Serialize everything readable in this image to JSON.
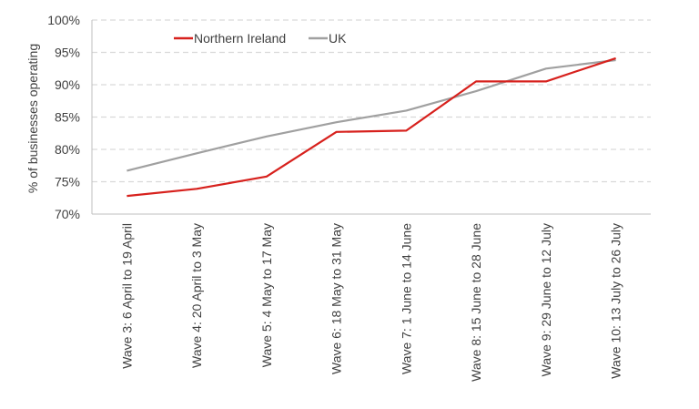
{
  "chart_data": {
    "type": "line",
    "title": "",
    "xlabel": "",
    "ylabel": "% of businesses  operating",
    "ylim": [
      70,
      100
    ],
    "yticks": [
      70,
      75,
      80,
      85,
      90,
      95,
      100
    ],
    "ytick_labels": [
      "70%",
      "75%",
      "80%",
      "85%",
      "90%",
      "95%",
      "100%"
    ],
    "grid": {
      "y": true,
      "style": "dashed"
    },
    "legend_position": "top-left inside",
    "categories": [
      "Wave 3: 6 April to 19 April",
      "Wave 4: 20 April to 3 May",
      "Wave 5: 4 May to 17 May",
      "Wave 6: 18 May to 31 May",
      "Wave 7: 1 June to 14 June",
      "Wave 8: 15 June to 28 June",
      "Wave 9: 29 June to 12 July",
      "Wave 10: 13 July to 26 July"
    ],
    "series": [
      {
        "name": "Northern Ireland",
        "color": "#d7211d",
        "values": [
          72.8,
          73.9,
          75.8,
          82.7,
          82.9,
          90.5,
          90.5,
          94.1
        ]
      },
      {
        "name": "UK",
        "color": "#a0a0a0",
        "values": [
          76.7,
          79.4,
          82.0,
          84.2,
          86.0,
          89.0,
          92.5,
          93.8
        ]
      }
    ]
  },
  "colors": {
    "grid": "#d9d9d9",
    "axis": "#bfbfbf",
    "text": "#404040"
  }
}
